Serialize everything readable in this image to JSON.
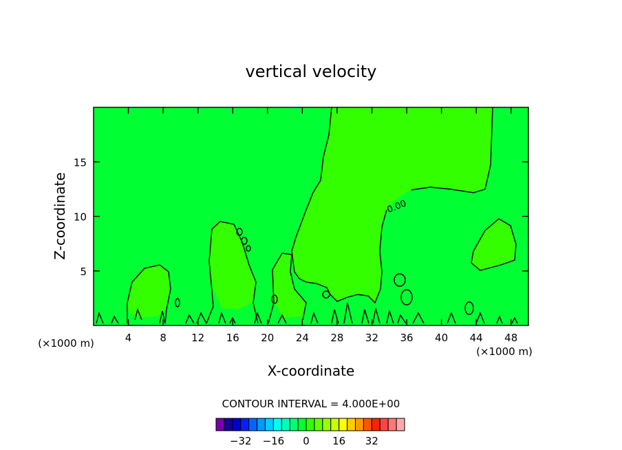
{
  "chart_data": {
    "type": "contour",
    "title": "vertical velocity",
    "xlabel": "X-coordinate",
    "ylabel": "Z-coordinate",
    "x_unit": "(×1000 m)",
    "xlim": [
      0,
      50
    ],
    "ylim": [
      0,
      20
    ],
    "x_ticks": [
      4,
      8,
      12,
      16,
      20,
      24,
      28,
      32,
      36,
      40,
      44,
      48
    ],
    "y_ticks": [
      5,
      10,
      15
    ],
    "contour_label": "0.00",
    "contour_interval_text": "CONTOUR INTERVAL = 4.000E+00",
    "background_fill": "#00ff33",
    "positive_fill": "#33ff00",
    "colorbar": {
      "colors": [
        "#7700aa",
        "#1a0099",
        "#0000cc",
        "#0022ff",
        "#0066ff",
        "#0099ff",
        "#00ccff",
        "#00ffee",
        "#00ffbb",
        "#00ff77",
        "#00ff33",
        "#33ff00",
        "#66ff00",
        "#99ff00",
        "#ccff00",
        "#ffff00",
        "#ffcc00",
        "#ff9900",
        "#ff5500",
        "#ff2200",
        "#ff4444",
        "#ff7777",
        "#ffaaaa"
      ],
      "tick_labels": [
        "-32",
        "-16",
        "0",
        "16",
        "32"
      ],
      "tick_values": [
        -32,
        -16,
        0,
        16,
        32
      ],
      "vmin": -44,
      "vmax": 48
    }
  }
}
